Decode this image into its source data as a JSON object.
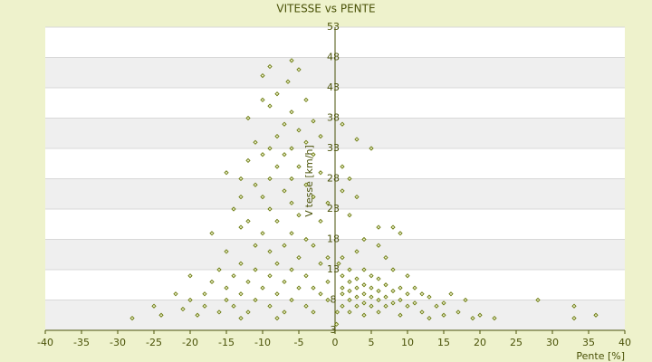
{
  "chart_data": {
    "type": "scatter",
    "title": "VITESSE vs PENTE",
    "x_label": "Pente [%]",
    "y_label": "Vitesse [km/h]",
    "color": "#6b7a10",
    "grid": true,
    "xlim": [
      -40,
      40
    ],
    "ylim": [
      3,
      53
    ],
    "xticks": [
      -40,
      -35,
      -30,
      -25,
      -20,
      -15,
      -10,
      -5,
      0,
      5,
      10,
      15,
      20,
      25,
      30,
      35,
      40
    ],
    "yticks": [
      3,
      8,
      13,
      18,
      23,
      28,
      33,
      38,
      43,
      48,
      53
    ],
    "x": [
      -10,
      -9,
      -6,
      -5,
      -6.5,
      -8,
      -10,
      -9,
      -12,
      -6,
      -7,
      -4,
      -3,
      -5,
      -8,
      -11,
      -9,
      -4,
      -2,
      -6,
      -10,
      -7,
      -12,
      -3,
      -15,
      -8,
      -5,
      -13,
      -9,
      -6,
      -2,
      -11,
      -4,
      -7,
      -13,
      -10,
      -3,
      -6,
      -14,
      -9,
      -1,
      -5,
      -12,
      -8,
      -2,
      -17,
      -13,
      -10,
      -6,
      -4,
      -11,
      -7,
      -3,
      -15,
      -9,
      -5,
      -1,
      -13,
      -8,
      -2,
      -16,
      -11,
      -6,
      -20,
      -14,
      -9,
      -4,
      -17,
      -12,
      -7,
      -1,
      -15,
      -10,
      -5,
      -3,
      -22,
      -18,
      -13,
      -8,
      -2,
      -20,
      -15,
      -11,
      -6,
      -1,
      -25,
      -18,
      -14,
      -9,
      -4,
      -21,
      -16,
      -12,
      -7,
      -3,
      -24,
      -19,
      -13,
      -8,
      -28,
      1,
      3,
      5,
      1,
      2,
      3,
      1,
      2,
      6,
      8,
      9,
      4,
      6,
      3,
      7,
      1,
      2,
      4,
      0.5,
      8,
      10,
      5,
      1,
      3,
      6,
      2,
      4,
      7,
      9,
      11,
      1,
      3,
      5,
      2,
      6,
      8,
      4,
      10,
      12,
      1,
      3,
      5,
      7,
      13,
      2,
      6,
      9,
      16,
      4,
      8,
      11,
      15,
      18,
      1,
      3,
      5,
      7,
      10,
      14,
      2,
      6,
      12,
      17,
      20,
      4,
      9,
      15,
      22,
      28,
      33,
      33,
      36,
      0.3,
      0.2,
      19,
      13
    ],
    "y": [
      45,
      46.5,
      47.5,
      46,
      44,
      42,
      41,
      40,
      38,
      39,
      37,
      41,
      37.5,
      36,
      35,
      34,
      33,
      34,
      35,
      33,
      32,
      32,
      31,
      32,
      29,
      30,
      30,
      28,
      28,
      28,
      29,
      27,
      27,
      26,
      25,
      25,
      25,
      24,
      23,
      23,
      24,
      22,
      21,
      21,
      21,
      19,
      20,
      19,
      19,
      18,
      17,
      17,
      17,
      16,
      16,
      15,
      15,
      14,
      14,
      14,
      13,
      13,
      13,
      12,
      12,
      12,
      12,
      11,
      11,
      11,
      11,
      10,
      10,
      10,
      10,
      9,
      9,
      9,
      9,
      9,
      8,
      8,
      8,
      8,
      8,
      7,
      7,
      7,
      7,
      7,
      6.5,
      6,
      6,
      6,
      6,
      5.5,
      5.5,
      5,
      5,
      5,
      37,
      34.5,
      33,
      30,
      28,
      25,
      26,
      22,
      20,
      20,
      19,
      18,
      17,
      16,
      15,
      15,
      13,
      13,
      14,
      13,
      12,
      12,
      12,
      11.5,
      11.5,
      11,
      10.5,
      10.5,
      10,
      10,
      10,
      10,
      10,
      9.5,
      9.5,
      9.5,
      9,
      9,
      9,
      9,
      8.5,
      8.5,
      8.5,
      8.5,
      8,
      8,
      8,
      9,
      7.5,
      7.5,
      7.5,
      7.5,
      8,
      7,
      7,
      7,
      7,
      7,
      7,
      6,
      6,
      6,
      6,
      5.5,
      5.5,
      5.5,
      5.5,
      5,
      8,
      7,
      5,
      5.5,
      6,
      4,
      5,
      5
    ]
  }
}
